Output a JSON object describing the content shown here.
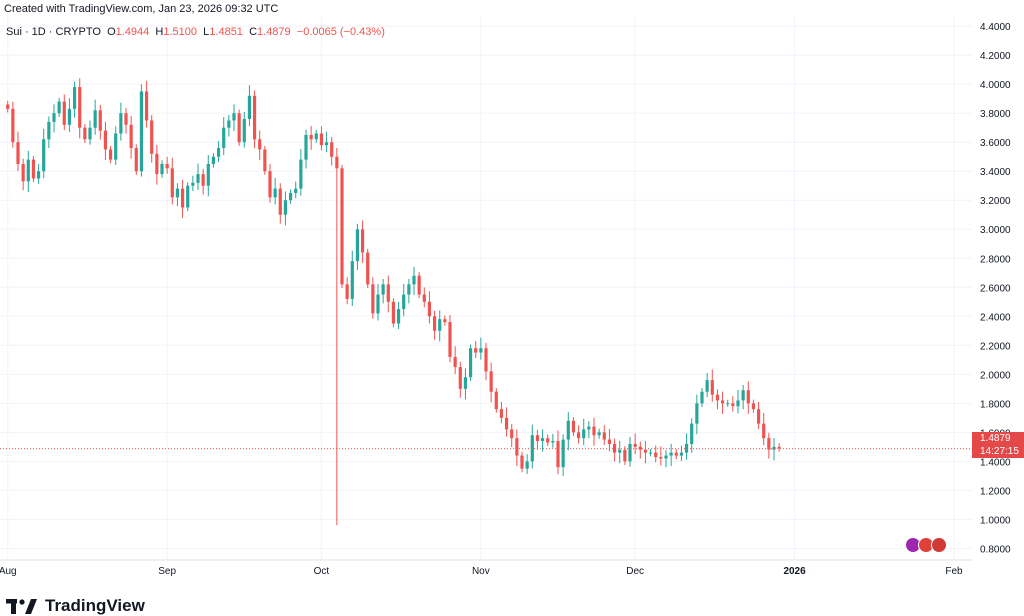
{
  "header": {
    "created_text": "Created with TradingView.com, Jan 23, 2026 09:32 UTC"
  },
  "legend": {
    "symbol": "Sui · 1D · CRYPTO",
    "o_label": "O",
    "o_value": "1.4944",
    "h_label": "H",
    "h_value": "1.5100",
    "l_label": "L",
    "l_value": "1.4851",
    "c_label": "C",
    "c_value": "1.4879",
    "change": "−0.0065 (−0.43%)"
  },
  "price_tag": {
    "price": "1.4879",
    "countdown": "14:27:15"
  },
  "brand": {
    "name": "TradingView"
  },
  "colors": {
    "up": "#26a69a",
    "down": "#ef5350",
    "grid": "#f0f3fa",
    "tag": "#e54848"
  },
  "chart_data": {
    "type": "candlestick",
    "title": "Sui · 1D · CRYPTO",
    "y_ticks": [
      0.8,
      1.0,
      1.2,
      1.4,
      1.6,
      1.8,
      2.0,
      2.2,
      2.4,
      2.6,
      2.8,
      3.0,
      3.2,
      3.4,
      3.6,
      3.8,
      4.0,
      4.2,
      4.4
    ],
    "y_tick_labels": [
      "0.8000",
      "1.0000",
      "1.2000",
      "1.4000",
      "1.6000",
      "1.8000",
      "2.0000",
      "2.2000",
      "2.4000",
      "2.6000",
      "2.8000",
      "3.0000",
      "3.2000",
      "3.4000",
      "3.6000",
      "3.8000",
      "4.0000",
      "4.2000",
      "4.4000"
    ],
    "ylim": [
      0.72,
      4.47
    ],
    "x_labels": [
      {
        "label": "Aug",
        "day": 0
      },
      {
        "label": "Sep",
        "day": 31
      },
      {
        "label": "Oct",
        "day": 61
      },
      {
        "label": "Nov",
        "day": 92
      },
      {
        "label": "Dec",
        "day": 122
      },
      {
        "label": "2026",
        "day": 153
      },
      {
        "label": "Feb",
        "day": 184
      }
    ],
    "x_range_days": [
      -1.5,
      187.5
    ],
    "last_price": 1.4879,
    "closes": [
      3.83,
      3.6,
      3.45,
      3.33,
      3.48,
      3.35,
      3.4,
      3.62,
      3.74,
      3.8,
      3.88,
      3.72,
      3.83,
      3.98,
      3.7,
      3.62,
      3.7,
      3.82,
      3.68,
      3.55,
      3.48,
      3.66,
      3.8,
      3.72,
      3.56,
      3.4,
      3.95,
      3.75,
      3.52,
      3.38,
      3.45,
      3.42,
      3.22,
      3.28,
      3.15,
      3.3,
      3.32,
      3.38,
      3.3,
      3.45,
      3.5,
      3.56,
      3.7,
      3.75,
      3.8,
      3.6,
      3.76,
      3.92,
      3.62,
      3.55,
      3.4,
      3.22,
      3.28,
      3.1,
      3.2,
      3.25,
      3.28,
      3.48,
      3.65,
      3.62,
      3.66,
      3.58,
      3.6,
      3.5,
      3.42,
      2.62,
      2.52,
      2.78,
      3.0,
      2.84,
      2.62,
      2.42,
      2.55,
      2.62,
      2.5,
      2.35,
      2.45,
      2.55,
      2.62,
      2.68,
      2.55,
      2.5,
      2.4,
      2.3,
      2.38,
      2.36,
      2.12,
      2.05,
      1.9,
      1.98,
      2.18,
      2.15,
      2.18,
      2.02,
      1.88,
      1.76,
      1.7,
      1.62,
      1.56,
      1.44,
      1.35,
      1.4,
      1.58,
      1.54,
      1.56,
      1.53,
      1.54,
      1.36,
      1.55,
      1.68,
      1.6,
      1.56,
      1.62,
      1.64,
      1.58,
      1.6,
      1.55,
      1.52,
      1.46,
      1.48,
      1.4,
      1.52,
      1.5,
      1.48,
      1.46,
      1.46,
      1.43,
      1.42,
      1.44,
      1.46,
      1.44,
      1.46,
      1.52,
      1.66,
      1.8,
      1.88,
      1.96,
      1.86,
      1.82,
      1.8,
      1.8,
      1.78,
      1.82,
      1.89,
      1.8,
      1.76,
      1.66,
      1.56,
      1.48,
      1.5,
      1.49
    ],
    "opens_note": "open of each candle = previous close",
    "special_wicks": [
      {
        "index": 64,
        "low": 0.96
      }
    ]
  }
}
